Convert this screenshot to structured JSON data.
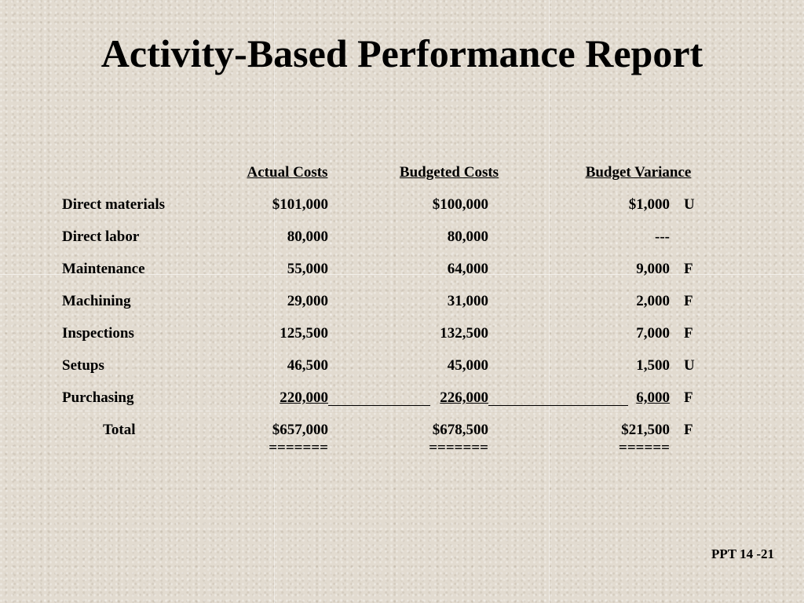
{
  "title": "Activity-Based Performance Report",
  "columns": [
    "Actual Costs",
    "Budgeted Costs",
    "Budget Variance"
  ],
  "rows": [
    {
      "label": "Direct materials",
      "actual": "$101,000",
      "budget": "$100,000",
      "variance": "$1,000",
      "flag": "U"
    },
    {
      "label": "Direct labor",
      "actual": "80,000",
      "budget": "80,000",
      "variance": "---",
      "flag": ""
    },
    {
      "label": "Maintenance",
      "actual": "55,000",
      "budget": "64,000",
      "variance": "9,000",
      "flag": "F"
    },
    {
      "label": "Machining",
      "actual": "29,000",
      "budget": "31,000",
      "variance": "2,000",
      "flag": "F"
    },
    {
      "label": "Inspections",
      "actual": "125,500",
      "budget": "132,500",
      "variance": "7,000",
      "flag": "F"
    },
    {
      "label": "Setups",
      "actual": "46,500",
      "budget": "45,000",
      "variance": "1,500",
      "flag": "U"
    },
    {
      "label": "Purchasing",
      "actual": "220,000",
      "budget": "226,000",
      "variance": "6,000",
      "flag": "F"
    }
  ],
  "total": {
    "label": "Total",
    "actual": "$657,000",
    "budget": "$678,500",
    "variance": "$21,500",
    "flag": "F"
  },
  "double_rules": {
    "actual": "=======",
    "budget": "=======",
    "variance": "======"
  },
  "footer": "PPT 14 -21"
}
